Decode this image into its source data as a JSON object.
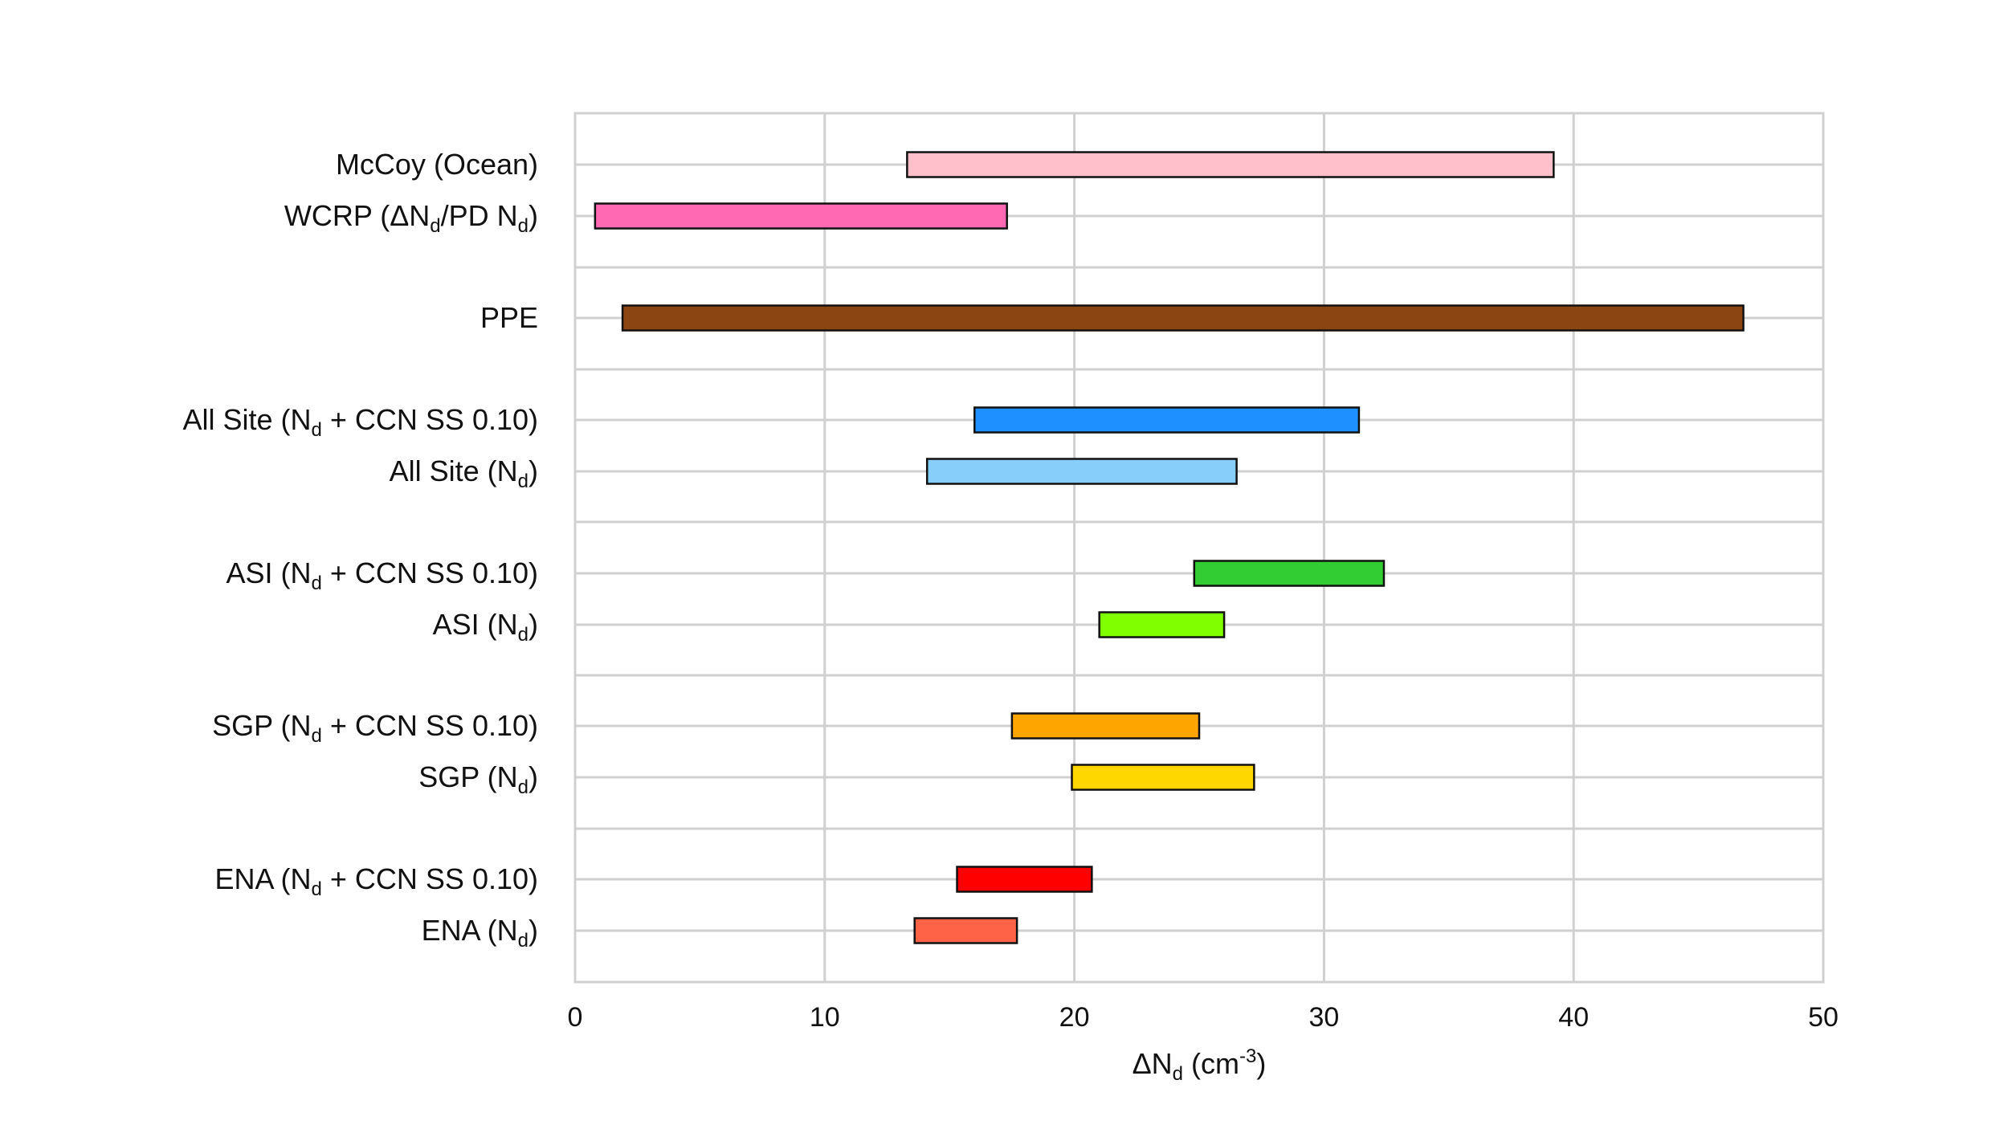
{
  "chart_data": {
    "type": "bar",
    "orientation": "horizontal-range",
    "xlabel": {
      "main": "ΔN",
      "sub": "d",
      "tail": " (cm",
      "sup": "-3",
      "end": ")"
    },
    "xlim": [
      0,
      50
    ],
    "xticks": [
      0,
      10,
      20,
      30,
      40,
      50
    ],
    "grid": true,
    "categories": [
      {
        "label": {
          "parts": [
            {
              "t": "McCoy (Ocean)"
            }
          ]
        },
        "low": 13.3,
        "high": 39.2,
        "color": "#FFC0CB"
      },
      {
        "label": {
          "parts": [
            {
              "t": "WCRP (ΔN"
            },
            {
              "sub": "d"
            },
            {
              "t": "/PD N"
            },
            {
              "sub": "d"
            },
            {
              "t": ")"
            }
          ]
        },
        "low": 0.8,
        "high": 17.3,
        "color": "#FF69B4"
      },
      {
        "label": {
          "parts": [
            {
              "t": "PPE"
            }
          ]
        },
        "low": 1.9,
        "high": 46.8,
        "color": "#8B4513"
      },
      {
        "label": {
          "parts": [
            {
              "t": "All Site (N"
            },
            {
              "sub": "d"
            },
            {
              "t": " + CCN SS 0.10)"
            }
          ]
        },
        "low": 16.0,
        "high": 31.4,
        "color": "#1E90FF"
      },
      {
        "label": {
          "parts": [
            {
              "t": "All Site (N"
            },
            {
              "sub": "d"
            },
            {
              "t": ")"
            }
          ]
        },
        "low": 14.1,
        "high": 26.5,
        "color": "#87CEFA"
      },
      {
        "label": {
          "parts": [
            {
              "t": "ASI (N"
            },
            {
              "sub": "d"
            },
            {
              "t": " + CCN SS 0.10)"
            }
          ]
        },
        "low": 24.8,
        "high": 32.4,
        "color": "#32CD32"
      },
      {
        "label": {
          "parts": [
            {
              "t": "ASI (N"
            },
            {
              "sub": "d"
            },
            {
              "t": ")"
            }
          ]
        },
        "low": 21.0,
        "high": 26.0,
        "color": "#7FFF00"
      },
      {
        "label": {
          "parts": [
            {
              "t": "SGP (N"
            },
            {
              "sub": "d"
            },
            {
              "t": " + CCN SS 0.10)"
            }
          ]
        },
        "low": 17.5,
        "high": 25.0,
        "color": "#FFA500"
      },
      {
        "label": {
          "parts": [
            {
              "t": "SGP (N"
            },
            {
              "sub": "d"
            },
            {
              "t": ")"
            }
          ]
        },
        "low": 19.9,
        "high": 27.2,
        "color": "#FFD700"
      },
      {
        "label": {
          "parts": [
            {
              "t": "ENA (N"
            },
            {
              "sub": "d"
            },
            {
              "t": " + CCN SS 0.10)"
            }
          ]
        },
        "low": 15.3,
        "high": 20.7,
        "color": "#FF0000"
      },
      {
        "label": {
          "parts": [
            {
              "t": "ENA (N"
            },
            {
              "sub": "d"
            },
            {
              "t": ")"
            }
          ]
        },
        "low": 13.6,
        "high": 17.7,
        "color": "#FF6347"
      }
    ]
  }
}
